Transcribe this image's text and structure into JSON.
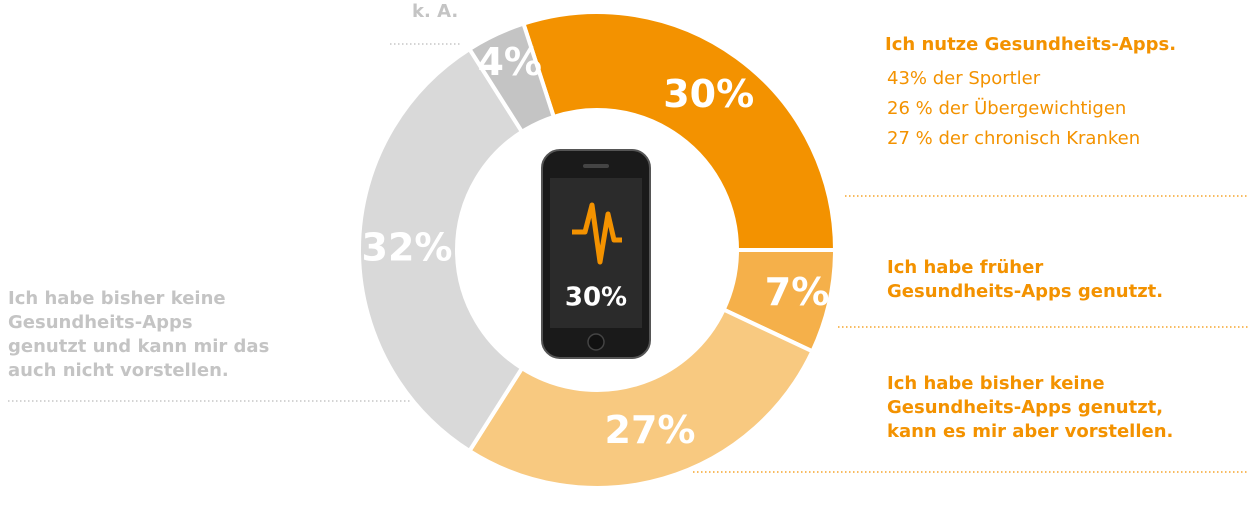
{
  "chart_data": {
    "type": "donut",
    "categories": [
      "Ich nutze Gesundheits-Apps.",
      "Ich habe früher\nGesundheits-Apps genutzt.",
      "Ich habe bisher keine\nGesundheits-Apps genutzt,\nkann es mir aber vorstellen.",
      "Ich habe bisher keine\nGesundheits-Apps\ngenutzt und kann mir das\nauch nicht vorstellen.",
      "k. A."
    ],
    "values": [
      30,
      7,
      27,
      32,
      4
    ],
    "value_labels": [
      "30%",
      "7%",
      "27%",
      "32%",
      "4%"
    ],
    "colors": [
      "#f39200",
      "#f5b04a",
      "#f8c980",
      "#d9d9d9",
      "#c4c4c4"
    ],
    "annotations": [
      "43% der Sportler",
      "26 % der Übergewichtigen",
      "27 % der chronisch Kranken"
    ],
    "center_label": "30%"
  }
}
